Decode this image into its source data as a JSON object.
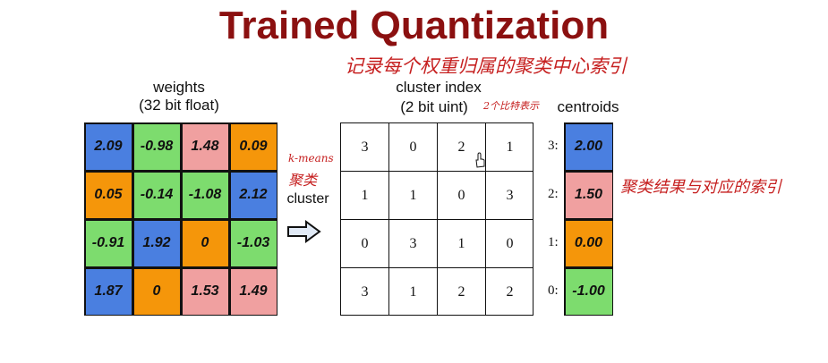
{
  "title": "Trained Quantization",
  "annotations": {
    "top": "记录每个权重归属的聚类中心索引",
    "bit": "2个比特表示",
    "kmeans": "k-means",
    "julei": "聚类",
    "right": "聚类结果与对应的索引"
  },
  "weights": {
    "label_line1": "weights",
    "label_line2": "(32 bit float)",
    "grid": [
      [
        "2.09",
        "-0.98",
        "1.48",
        "0.09"
      ],
      [
        "0.05",
        "-0.14",
        "-1.08",
        "2.12"
      ],
      [
        "-0.91",
        "1.92",
        "0",
        "-1.03"
      ],
      [
        "1.87",
        "0",
        "1.53",
        "1.49"
      ]
    ],
    "colors": [
      [
        "#4a7fe0",
        "#7ddc6e",
        "#f0a0a0",
        "#f5960a"
      ],
      [
        "#f5960a",
        "#7ddc6e",
        "#7ddc6e",
        "#4a7fe0"
      ],
      [
        "#7ddc6e",
        "#4a7fe0",
        "#f5960a",
        "#7ddc6e"
      ],
      [
        "#4a7fe0",
        "#f5960a",
        "#f0a0a0",
        "#f0a0a0"
      ]
    ]
  },
  "arrow_label": "cluster",
  "cluster_index": {
    "label_line1": "cluster index",
    "label_line2": "(2 bit uint)",
    "grid": [
      [
        "3",
        "0",
        "2",
        "1"
      ],
      [
        "1",
        "1",
        "0",
        "3"
      ],
      [
        "0",
        "3",
        "1",
        "0"
      ],
      [
        "3",
        "1",
        "2",
        "2"
      ]
    ]
  },
  "centroids": {
    "label": "centroids",
    "items": [
      {
        "index": "3:",
        "value": "2.00",
        "color": "#4a7fe0"
      },
      {
        "index": "2:",
        "value": "1.50",
        "color": "#f0a0a0"
      },
      {
        "index": "1:",
        "value": "0.00",
        "color": "#f5960a"
      },
      {
        "index": "0:",
        "value": "-1.00",
        "color": "#7ddc6e"
      }
    ]
  },
  "colors": {
    "title": "#8b1010",
    "annotation": "#c62020"
  }
}
